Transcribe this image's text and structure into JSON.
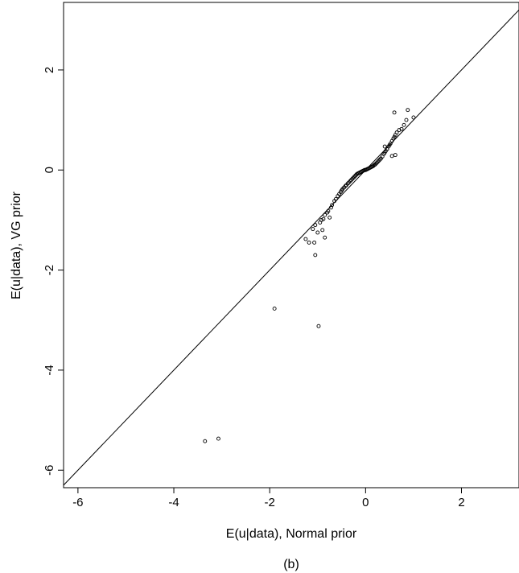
{
  "chart_data": {
    "type": "scatter",
    "xlabel": "E(u|data), Normal prior",
    "ylabel": "E(u|data), VG prior",
    "caption": "(b)",
    "xlim": [
      -6.3,
      3.2
    ],
    "ylim": [
      -6.35,
      3.35
    ],
    "x_ticks": [
      -6,
      -4,
      -2,
      0,
      2
    ],
    "y_ticks": [
      -6,
      -4,
      -2,
      0,
      2
    ],
    "x_tick_labels": [
      "-6",
      "-4",
      "-2",
      "0",
      "2"
    ],
    "y_tick_labels": [
      "-6",
      "-4",
      "-2",
      "0",
      "2"
    ],
    "reference_line": {
      "kind": "y=x"
    },
    "grid": false,
    "series": [
      {
        "x": [
          -3.35,
          -3.07,
          -1.9,
          -0.98,
          -1.25,
          -1.18,
          -1.1,
          -1.05,
          -1.07,
          -0.95,
          -0.92,
          -0.88,
          -0.85,
          -0.8,
          -0.78,
          -0.72,
          -0.7,
          -0.65,
          -0.62,
          -0.58,
          -0.55,
          -0.52,
          -0.5,
          -0.48,
          -0.45,
          -0.42,
          -0.4,
          -0.37,
          -0.35,
          -0.32,
          -0.3,
          -0.28,
          -0.26,
          -0.24,
          -0.22,
          -0.2,
          -0.18,
          -0.16,
          -0.14,
          -0.12,
          -0.1,
          -0.08,
          -0.06,
          -0.04,
          -0.02,
          0.0,
          0.02,
          0.04,
          0.06,
          0.08,
          0.1,
          0.12,
          0.14,
          0.16,
          0.18,
          0.2,
          0.22,
          0.24,
          0.26,
          0.28,
          0.3,
          0.32,
          0.35,
          0.38,
          0.4,
          0.42,
          0.45,
          0.48,
          0.5,
          0.52,
          0.55,
          0.58,
          0.6,
          0.62,
          0.65,
          0.7,
          0.75,
          0.8,
          0.85,
          0.88,
          1.0,
          0.6,
          0.62,
          0.45,
          0.4,
          0.55,
          -1.0,
          -1.05,
          -0.9,
          -0.85,
          -0.75
        ],
        "y": [
          -5.42,
          -5.37,
          -2.77,
          -3.12,
          -1.38,
          -1.45,
          -1.18,
          -1.7,
          -1.45,
          -1.05,
          -1.0,
          -0.98,
          -0.9,
          -0.85,
          -0.82,
          -0.75,
          -0.7,
          -0.62,
          -0.58,
          -0.52,
          -0.48,
          -0.44,
          -0.41,
          -0.38,
          -0.35,
          -0.32,
          -0.3,
          -0.27,
          -0.25,
          -0.22,
          -0.2,
          -0.18,
          -0.16,
          -0.14,
          -0.12,
          -0.1,
          -0.08,
          -0.07,
          -0.06,
          -0.05,
          -0.04,
          -0.03,
          -0.02,
          -0.01,
          0.0,
          0.0,
          0.01,
          0.02,
          0.03,
          0.04,
          0.05,
          0.06,
          0.07,
          0.08,
          0.1,
          0.11,
          0.13,
          0.15,
          0.17,
          0.19,
          0.21,
          0.23,
          0.27,
          0.32,
          0.35,
          0.38,
          0.42,
          0.47,
          0.5,
          0.53,
          0.58,
          0.63,
          0.66,
          0.7,
          0.75,
          0.8,
          0.82,
          0.9,
          1.0,
          1.2,
          1.05,
          1.15,
          0.3,
          0.42,
          0.47,
          0.28,
          -1.25,
          -1.1,
          -1.2,
          -1.35,
          -0.95
        ]
      }
    ]
  }
}
